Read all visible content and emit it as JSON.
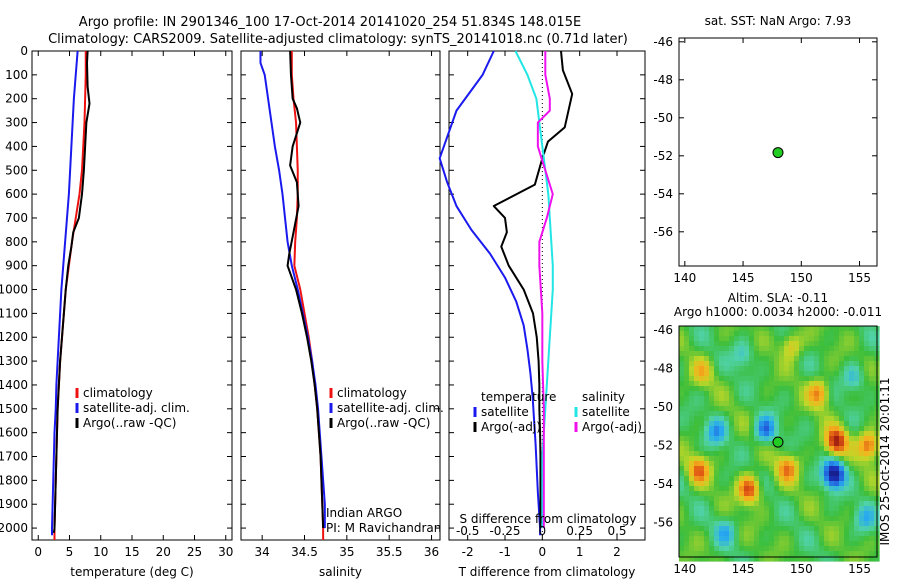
{
  "header": {
    "line1": "Argo profile: IN 2901346_100 17-Oct-2014 20141020_254 51.834S 148.015E",
    "line2": "Climatology: CARS2009. Satellite-adjusted climatology: synTS_20141018.nc (0.71d later)"
  },
  "colors": {
    "climatology": "#ee1111",
    "satellite": "#1a1aee",
    "argo": "#000000",
    "salinity_satellite": "#22e5e5",
    "salinity_argo": "#ee11ee",
    "float_marker": "#22cc22"
  },
  "chart_data": [
    {
      "id": "temperature",
      "type": "line",
      "xlabel": "temperature (deg C)",
      "ylabel": "",
      "xlim": [
        -1,
        31
      ],
      "ylim": [
        2050,
        0
      ],
      "xticks": [
        0,
        5,
        10,
        15,
        20,
        25,
        30
      ],
      "xtick_labels": [
        "0",
        "5",
        "10",
        "15",
        "20",
        "25",
        "30"
      ],
      "yticks": [
        0,
        100,
        200,
        300,
        400,
        500,
        600,
        700,
        800,
        900,
        1000,
        1100,
        1200,
        1300,
        1400,
        1500,
        1600,
        1700,
        1800,
        1900,
        2000
      ],
      "legend": [
        "climatology",
        "satellite-adj. clim.",
        "Argo(..raw -QC)"
      ],
      "legend_position": "center-right",
      "series": [
        {
          "name": "climatology",
          "color": "#ee1111",
          "x": [
            7.6,
            7.6,
            7.5,
            7.4,
            7.2,
            7.0,
            6.6,
            6.0,
            5.4,
            4.9,
            4.4,
            4.1,
            3.8,
            3.5,
            3.3,
            3.1,
            3.0,
            2.9,
            2.8,
            2.7,
            2.6,
            2.6
          ],
          "y": [
            0,
            100,
            200,
            300,
            400,
            500,
            600,
            700,
            800,
            900,
            1000,
            1100,
            1200,
            1300,
            1400,
            1500,
            1600,
            1700,
            1800,
            1900,
            2000,
            2050
          ]
        },
        {
          "name": "satellite-adj. clim.",
          "color": "#1a1aee",
          "x": [
            6.3,
            6.0,
            5.7,
            5.5,
            5.3,
            5.1,
            4.9,
            4.6,
            4.3,
            4.0,
            3.7,
            3.5,
            3.3,
            3.1,
            2.9,
            2.8,
            2.6,
            2.5,
            2.4,
            2.3,
            2.2,
            2.2
          ],
          "y": [
            0,
            100,
            200,
            300,
            400,
            500,
            600,
            700,
            800,
            900,
            1000,
            1100,
            1200,
            1300,
            1400,
            1500,
            1600,
            1700,
            1800,
            1900,
            2000,
            2030
          ]
        },
        {
          "name": "Argo(..raw -QC)",
          "color": "#000000",
          "x": [
            7.9,
            7.8,
            7.9,
            8.2,
            7.7,
            7.5,
            7.3,
            7.0,
            6.5,
            5.6,
            5.3,
            4.8,
            4.4,
            4.1,
            3.8,
            3.5,
            3.3,
            3.1,
            3.0,
            2.9,
            2.8,
            2.7,
            2.6,
            2.5
          ],
          "y": [
            0,
            50,
            150,
            220,
            300,
            400,
            500,
            600,
            700,
            760,
            820,
            900,
            1000,
            1100,
            1200,
            1300,
            1400,
            1500,
            1600,
            1700,
            1800,
            1900,
            2000,
            2020
          ]
        }
      ]
    },
    {
      "id": "salinity",
      "type": "line",
      "xlabel": "salinity",
      "ylabel": "",
      "xlim": [
        33.75,
        36.1
      ],
      "ylim": [
        2050,
        0
      ],
      "xticks": [
        34,
        34.5,
        35,
        35.5,
        36
      ],
      "xtick_labels": [
        "34",
        "34.5",
        "35",
        "35.5",
        "36"
      ],
      "legend": [
        "climatology",
        "satellite-adj. clim.",
        "Argo(..raw -QC)"
      ],
      "legend_position": "center-right",
      "annotations": [
        "Indian ARGO",
        "PI: M Ravichandran"
      ],
      "series": [
        {
          "name": "climatology",
          "color": "#ee1111",
          "x": [
            34.35,
            34.35,
            34.37,
            34.4,
            34.41,
            34.42,
            34.42,
            34.41,
            34.39,
            34.38,
            34.45,
            34.5,
            34.55,
            34.59,
            34.62,
            34.65,
            34.67,
            34.69,
            34.7,
            34.71,
            34.72,
            34.72
          ],
          "y": [
            0,
            100,
            200,
            300,
            400,
            500,
            600,
            700,
            800,
            900,
            1000,
            1100,
            1200,
            1300,
            1400,
            1500,
            1600,
            1700,
            1800,
            1900,
            2000,
            2050
          ]
        },
        {
          "name": "satellite-adj. clim.",
          "color": "#1a1aee",
          "x": [
            33.98,
            33.98,
            34.03,
            34.07,
            34.11,
            34.15,
            34.2,
            34.24,
            34.27,
            34.3,
            34.35,
            34.42,
            34.48,
            34.54,
            34.59,
            34.63,
            34.66,
            34.68,
            34.7,
            34.72,
            34.74,
            34.74
          ],
          "y": [
            0,
            50,
            100,
            200,
            300,
            400,
            500,
            600,
            700,
            800,
            900,
            1000,
            1100,
            1200,
            1300,
            1400,
            1500,
            1600,
            1700,
            1800,
            1900,
            2000
          ]
        },
        {
          "name": "Argo(..raw -QC)",
          "color": "#000000",
          "x": [
            34.33,
            34.34,
            34.36,
            34.41,
            34.45,
            34.36,
            34.33,
            34.41,
            34.43,
            34.37,
            34.32,
            34.3,
            34.4,
            34.47,
            34.53,
            34.58,
            34.62,
            34.65,
            34.67,
            34.69,
            34.7,
            34.71,
            34.72
          ],
          "y": [
            0,
            100,
            200,
            240,
            300,
            400,
            480,
            550,
            650,
            760,
            850,
            900,
            1000,
            1100,
            1200,
            1300,
            1400,
            1500,
            1600,
            1700,
            1800,
            1900,
            2000
          ]
        }
      ]
    },
    {
      "id": "difference",
      "type": "line",
      "xlabel": "T difference from climatology",
      "xlabel_top": "S difference from climatology",
      "ylabel": "",
      "xlim": [
        -2.5,
        2.75
      ],
      "ylim": [
        2050,
        0
      ],
      "xticks": [
        -2,
        -1,
        0,
        1,
        2
      ],
      "xtick_labels": [
        "-2",
        "-1",
        "0",
        "1",
        "2"
      ],
      "s_ticks": [
        -0.5,
        -0.25,
        0,
        0.25,
        0.5
      ],
      "s_tick_labels": [
        "-0.5",
        "-0.25",
        "0",
        "0.25",
        "0.5"
      ],
      "legend_groups": [
        "temperature",
        "salinity"
      ],
      "legend": [
        "satellite",
        "Argo(-adj)",
        "satellite",
        "Argo(-adj)"
      ],
      "legend_position": "center",
      "series": [
        {
          "name": "satellite",
          "group": "temperature",
          "color": "#1a1aee",
          "x": [
            -1.3,
            -1.6,
            -2.3,
            -2.75,
            -2.55,
            -2.3,
            -1.9,
            -1.4,
            -1.0,
            -0.7,
            -0.5,
            -0.4,
            -0.32,
            -0.26,
            -0.22,
            -0.18,
            -0.15,
            -0.12,
            -0.1,
            -0.08,
            -0.06,
            -0.06
          ],
          "y": [
            0,
            100,
            250,
            450,
            550,
            650,
            750,
            850,
            950,
            1050,
            1150,
            1250,
            1350,
            1450,
            1550,
            1650,
            1750,
            1850,
            1900,
            1950,
            2000,
            2030
          ]
        },
        {
          "name": "Argo(-adj)",
          "group": "temperature",
          "color": "#000000",
          "x": [
            0.5,
            0.55,
            0.8,
            0.6,
            0.15,
            0.0,
            -0.2,
            -1.3,
            -1.0,
            -0.95,
            -1.1,
            -0.9,
            -0.5,
            -0.25,
            -0.15,
            -0.1,
            -0.08,
            -0.08,
            -0.06,
            -0.05,
            -0.05,
            -0.05
          ],
          "y": [
            0,
            80,
            180,
            320,
            380,
            450,
            560,
            650,
            700,
            760,
            820,
            900,
            1000,
            1100,
            1200,
            1300,
            1400,
            1500,
            1600,
            1700,
            1800,
            2000
          ]
        },
        {
          "name": "satellite",
          "group": "salinity",
          "color": "#22e5e5",
          "x": [
            -0.18,
            -0.1,
            -0.04,
            -0.02,
            0.0,
            0.02,
            0.04,
            0.05,
            0.06,
            0.07,
            0.07,
            0.06,
            0.05,
            0.04,
            0.03,
            0.02,
            0.01,
            0.0,
            0.0
          ],
          "y": [
            0,
            100,
            200,
            300,
            400,
            500,
            600,
            700,
            800,
            900,
            1000,
            1100,
            1200,
            1300,
            1400,
            1500,
            1600,
            1700,
            2000
          ]
        },
        {
          "name": "Argo(-adj)",
          "group": "salinity",
          "color": "#ee11ee",
          "x": [
            0.02,
            0.02,
            0.05,
            0.05,
            -0.03,
            -0.03,
            0.02,
            0.07,
            0.03,
            -0.02,
            -0.02,
            -0.01,
            0.0,
            0.0,
            0.01,
            0.01,
            0.01,
            0.01,
            0.01
          ],
          "y": [
            0,
            100,
            200,
            250,
            300,
            400,
            500,
            600,
            700,
            800,
            900,
            1000,
            1100,
            1300,
            1500,
            1700,
            1800,
            1900,
            2000
          ]
        }
      ]
    },
    {
      "id": "sst_map",
      "type": "scatter",
      "title": "sat. SST: NaN Argo: 7.93",
      "xlabel": "",
      "ylabel": "",
      "xlim": [
        139.5,
        156.5
      ],
      "ylim": [
        -57.8,
        -45.8
      ],
      "xticks": [
        140,
        145,
        150,
        155
      ],
      "xtick_labels": [
        "140",
        "145",
        "150",
        "155"
      ],
      "yticks": [
        -46,
        -48,
        -50,
        -52,
        -54,
        -56
      ],
      "ytick_labels": [
        "-46",
        "-48",
        "-50",
        "-52",
        "-54",
        "-56"
      ],
      "points": [
        {
          "lon": 148.0,
          "lat": -51.83,
          "color": "#22cc22"
        }
      ]
    },
    {
      "id": "sla_map",
      "type": "heatmap",
      "title": "Altim. SLA: -0.11",
      "subtitle": "Argo h1000: 0.0034 h2000: -0.011",
      "xlabel": "",
      "ylabel": "",
      "xlim": [
        139.5,
        156.5
      ],
      "ylim": [
        -57.8,
        -45.8
      ],
      "xticks": [
        140,
        145,
        150,
        155
      ],
      "xtick_labels": [
        "140",
        "145",
        "150",
        "155"
      ],
      "yticks": [
        -46,
        -48,
        -50,
        -52,
        -54,
        -56
      ],
      "ytick_labels": [
        "-46",
        "-48",
        "-50",
        "-52",
        "-54",
        "-56"
      ],
      "side_label": "IMOS 25-Oct-2014 20:01:11",
      "points": [
        {
          "lon": 148.0,
          "lat": -51.83,
          "color": "#22cc22"
        }
      ],
      "features": [
        {
          "kind": "high",
          "lon": 141.2,
          "lat": -53.3,
          "amp": 0.22
        },
        {
          "kind": "high",
          "lon": 145.5,
          "lat": -54.3,
          "amp": 0.28
        },
        {
          "kind": "high",
          "lon": 148.8,
          "lat": -53.2,
          "amp": 0.2
        },
        {
          "kind": "high",
          "lon": 153.0,
          "lat": -51.8,
          "amp": 0.33
        },
        {
          "kind": "high",
          "lon": 151.5,
          "lat": -49.3,
          "amp": 0.2
        },
        {
          "kind": "high",
          "lon": 141.5,
          "lat": -48.2,
          "amp": 0.12
        },
        {
          "kind": "high",
          "lon": 155.8,
          "lat": -52.0,
          "amp": 0.25
        },
        {
          "kind": "high",
          "lon": 149.2,
          "lat": -46.8,
          "amp": 0.15
        },
        {
          "kind": "low",
          "lon": 152.8,
          "lat": -53.5,
          "amp": 0.38
        },
        {
          "kind": "low",
          "lon": 146.9,
          "lat": -51.2,
          "amp": 0.22
        },
        {
          "kind": "low",
          "lon": 142.7,
          "lat": -51.3,
          "amp": 0.16
        },
        {
          "kind": "low",
          "lon": 143.5,
          "lat": -56.5,
          "amp": 0.12
        },
        {
          "kind": "low",
          "lon": 155.5,
          "lat": -55.8,
          "amp": 0.12
        },
        {
          "kind": "low",
          "lon": 145.0,
          "lat": -47.3,
          "amp": 0.1
        },
        {
          "kind": "low",
          "lon": 154.5,
          "lat": -48.5,
          "amp": 0.12
        }
      ]
    }
  ]
}
